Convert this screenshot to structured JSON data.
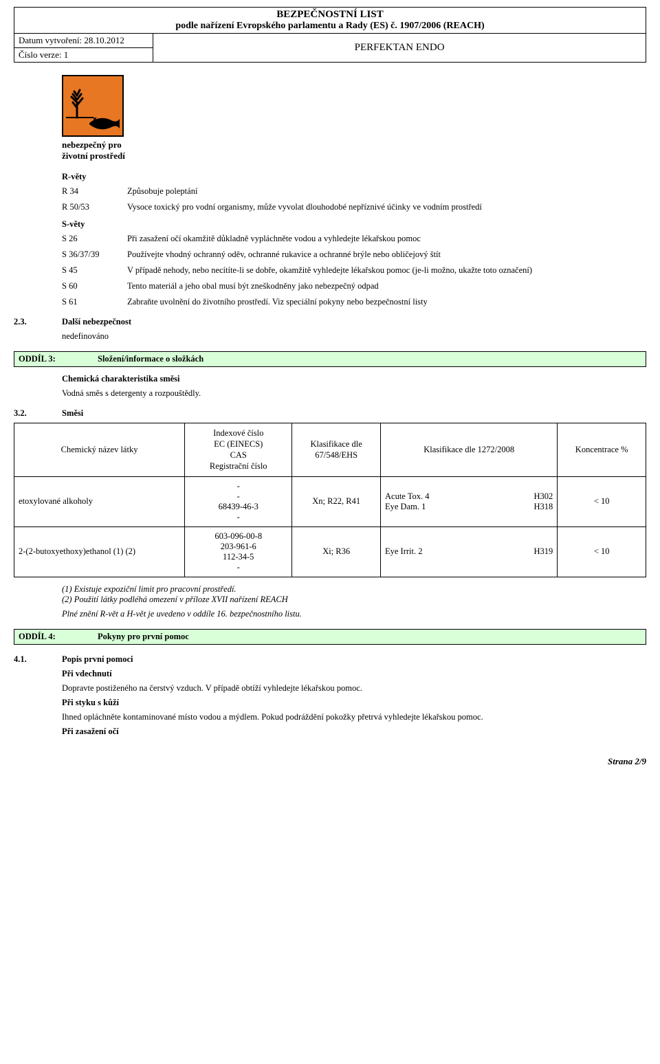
{
  "header": {
    "main_title": "BEZPEČNOSTNÍ LIST",
    "sub_title": "podle nařízení Evropského parlamentu a Rady (ES) č. 1907/2006 (REACH)",
    "product_name": "PERFEKTAN ENDO",
    "date_label": "Datum vytvoření: 28.10.2012",
    "version_label": "Číslo verze: 1"
  },
  "hazard": {
    "label_line1": "nebezpečný pro",
    "label_line2": "životní prostředí",
    "pictogram": {
      "bg_color": "#e77722",
      "border_color": "#000000",
      "tree_color": "#000000",
      "fish_color": "#000000"
    }
  },
  "r_section": {
    "heading": "R-věty",
    "rows": [
      {
        "code": "R 34",
        "text": "Způsobuje poleptání"
      },
      {
        "code": "R 50/53",
        "text": "Vysoce toxický pro vodní organismy, může vyvolat dlouhodobé nepříznivé účinky ve vodním prostředí"
      }
    ]
  },
  "s_section": {
    "heading": "S-věty",
    "rows": [
      {
        "code": "S 26",
        "text": "Při zasažení očí okamžitě důkladně vypláchněte vodou a vyhledejte lékařskou pomoc"
      },
      {
        "code": "S 36/37/39",
        "text": "Používejte vhodný ochranný oděv, ochranné rukavice a ochranné brýle nebo obličejový štít"
      },
      {
        "code": "S 45",
        "text": "V případě nehody, nebo necítíte-li se dobře, okamžitě vyhledejte lékařskou pomoc (je-li možno, ukažte toto označení)"
      },
      {
        "code": "S 60",
        "text": "Tento materiál a jeho obal musí být zneškodněny jako nebezpečný odpad"
      },
      {
        "code": "S 61",
        "text": "Zabraňte uvolnění do životního prostředí. Viz speciální pokyny nebo bezpečnostní listy"
      }
    ]
  },
  "subsec_23": {
    "num": "2.3.",
    "title": "Další nebezpečnost",
    "body": "nedefinováno"
  },
  "section3": {
    "num": "ODDÍL 3:",
    "title": "Složení/informace o složkách",
    "sub1": "Chemická charakteristika směsi",
    "sub1_body": "Vodná směs s detergenty a rozpouštědly."
  },
  "subsec_32": {
    "num": "3.2.",
    "title": "Směsi"
  },
  "comp_table": {
    "headers": {
      "name": "Chemický název látky",
      "index": "Indexové číslo\nEC (EINECS)\nCAS\nRegistrační číslo",
      "klas67": "Klasifikace dle\n67/548/EHS",
      "klas1272": "Klasifikace dle 1272/2008",
      "conc": "Koncentrace %"
    },
    "rows": [
      {
        "name": "etoxylované alkoholy",
        "index": "-\n-\n68439-46-3\n-",
        "klas67": "Xn; R22, R41",
        "klas1272_left": "Acute Tox. 4\nEye Dam. 1",
        "klas1272_right": "H302\nH318",
        "conc": "< 10"
      },
      {
        "name": "2-(2-butoxyethoxy)ethanol (1) (2)",
        "index": "603-096-00-8\n203-961-6\n112-34-5\n-",
        "klas67": "Xi; R36",
        "klas1272_left": "Eye Irrit. 2",
        "klas1272_right": "H319",
        "conc": "< 10"
      }
    ],
    "note_lines": [
      "(1) Existuje expoziční limit pro pracovní prostředí.",
      "(2) Použití látky podléhá omezení v příloze XVII nařízení REACH"
    ],
    "full_text_note": "Plné znění R-vět a H-vět je uvedeno v oddíle 16. bezpečnostního listu."
  },
  "section4": {
    "num": "ODDÍL 4:",
    "title": "Pokyny pro první pomoc"
  },
  "subsec_41": {
    "num": "4.1.",
    "title": "Popis první pomoci",
    "blocks": [
      {
        "h": "Při vdechnutí",
        "t": "Dopravte postiženého na čerstvý vzduch. V případě obtíží vyhledejte lékařskou pomoc."
      },
      {
        "h": "Při styku s kůží",
        "t": "Ihned opláchněte kontaminované místo vodou a mýdlem. Pokud podráždění pokožky přetrvá vyhledejte lékařskou pomoc."
      },
      {
        "h": "Při zasažení očí",
        "t": ""
      }
    ]
  },
  "page_number": "Strana 2/9"
}
